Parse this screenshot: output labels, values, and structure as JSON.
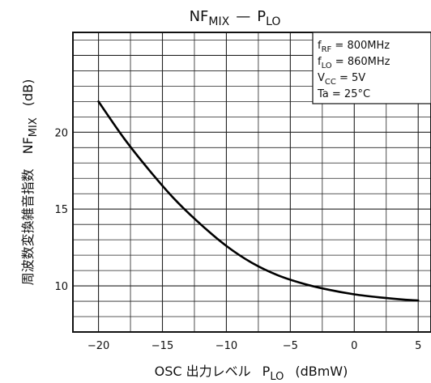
{
  "chart_data": {
    "type": "line",
    "title": {
      "main": "NF",
      "main_sub": "MIX",
      "sep": "—",
      "right": "P",
      "right_sub": "LO"
    },
    "xlabel": {
      "prefix": "OSC 出力レベル",
      "symbol": "P",
      "symbol_sub": "LO",
      "unit": "(dBmW)"
    },
    "ylabel": {
      "jp": "周波数変換雑音指数",
      "symbol": "NF",
      "symbol_sub": "MIX",
      "unit": "(dB)"
    },
    "xlim": [
      -22,
      6
    ],
    "ylim": [
      7,
      26.5
    ],
    "x_ticks": [
      {
        "value": -20,
        "label": "−20"
      },
      {
        "value": -15,
        "label": "−15"
      },
      {
        "value": -10,
        "label": "−10"
      },
      {
        "value": -5,
        "label": "−5"
      },
      {
        "value": 0,
        "label": "0"
      },
      {
        "value": 5,
        "label": "5"
      }
    ],
    "y_ticks": [
      {
        "value": 10,
        "label": "10"
      },
      {
        "value": 15,
        "label": "15"
      },
      {
        "value": 20,
        "label": "20"
      }
    ],
    "grid": true,
    "series": [
      {
        "x": [
          -20,
          -18,
          -16,
          -14,
          -12,
          -10,
          -8,
          -6,
          -4,
          -2,
          0,
          2,
          4,
          5
        ],
        "y": [
          22,
          19.6,
          17.5,
          15.6,
          14.0,
          12.6,
          11.5,
          10.7,
          10.15,
          9.75,
          9.45,
          9.25,
          9.1,
          9.05
        ]
      }
    ],
    "annotations": [
      {
        "base": "f",
        "sub": "RF",
        "rest": " = 800MHz"
      },
      {
        "base": "f",
        "sub": "LO",
        "rest": " = 860MHz"
      },
      {
        "base": "V",
        "sub": "CC",
        "rest": " = 5V"
      },
      {
        "base": "Ta",
        "sub": "",
        "rest": " = 25°C"
      }
    ],
    "legend_position": "top-right"
  }
}
